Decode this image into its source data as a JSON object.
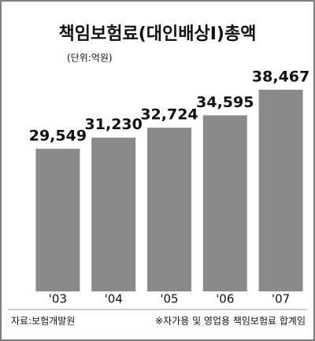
{
  "chart_data": {
    "type": "bar",
    "title": "책임보험료(대인배상Ⅰ)총액",
    "subtitle": "(단위:억원)",
    "categories": [
      "'03",
      "'04",
      "'05",
      "'06",
      "'07"
    ],
    "values": [
      29549,
      31230,
      32724,
      34595,
      38467
    ],
    "value_labels": [
      "29,549",
      "31,230",
      "32,724",
      "34,595",
      "38,467"
    ],
    "color": "#8a8a8a",
    "ylim": [
      8000,
      40000
    ],
    "source": "자료:보험개발원",
    "note": "※자가용 및 영업용 책임보험료 합계임"
  }
}
